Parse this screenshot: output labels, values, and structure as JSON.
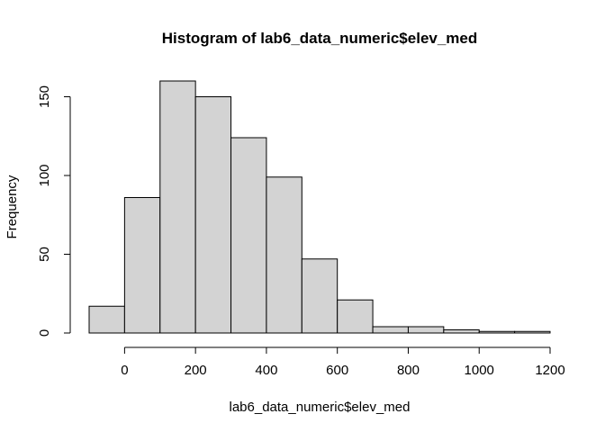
{
  "chart_data": {
    "type": "bar",
    "title": "Histogram of lab6_data_numeric$elev_med",
    "xlabel": "lab6_data_numeric$elev_med",
    "ylabel": "Frequency",
    "bins": [
      {
        "from": -100,
        "to": 0,
        "count": 17
      },
      {
        "from": 0,
        "to": 100,
        "count": 86
      },
      {
        "from": 100,
        "to": 200,
        "count": 160
      },
      {
        "from": 200,
        "to": 300,
        "count": 150
      },
      {
        "from": 300,
        "to": 400,
        "count": 124
      },
      {
        "from": 400,
        "to": 500,
        "count": 99
      },
      {
        "from": 500,
        "to": 600,
        "count": 47
      },
      {
        "from": 600,
        "to": 700,
        "count": 21
      },
      {
        "from": 700,
        "to": 800,
        "count": 4
      },
      {
        "from": 800,
        "to": 900,
        "count": 4
      },
      {
        "from": 900,
        "to": 1000,
        "count": 2
      },
      {
        "from": 1000,
        "to": 1100,
        "count": 1
      },
      {
        "from": 1100,
        "to": 1200,
        "count": 1
      }
    ],
    "xlim": [
      -100,
      1200
    ],
    "ylim": [
      0,
      160
    ],
    "x_ticks": [
      0,
      200,
      400,
      600,
      800,
      1000,
      1200
    ],
    "x_tick_labels": [
      "0",
      "200",
      "400",
      "600",
      "800",
      "1000",
      "1200"
    ],
    "y_ticks": [
      0,
      50,
      100,
      150
    ],
    "y_tick_labels": [
      "0",
      "50",
      "100",
      "150"
    ],
    "bar_fill": "#d3d3d3",
    "bar_stroke": "#000000",
    "grid": false,
    "legend": "none"
  }
}
